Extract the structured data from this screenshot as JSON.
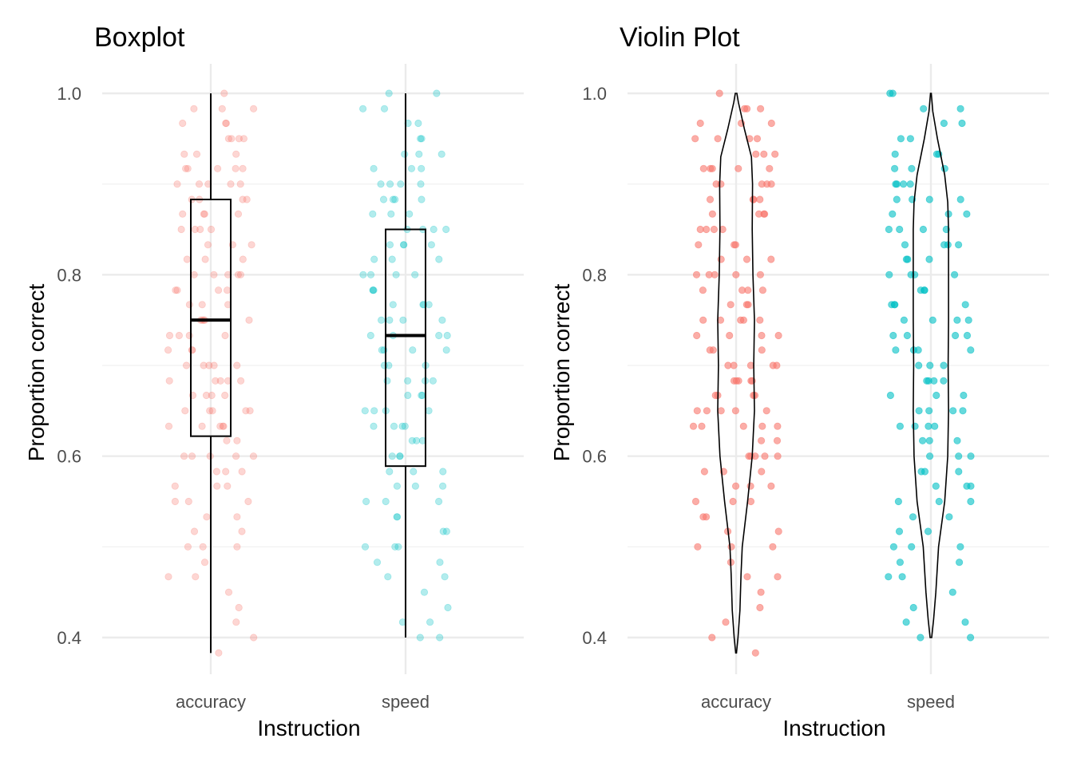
{
  "chart_data": [
    {
      "type": "box",
      "title": "Boxplot",
      "xlabel": "Instruction",
      "ylabel": "Proportion correct",
      "categories": [
        "accuracy",
        "speed"
      ],
      "yticks": [
        "0.4",
        "0.6",
        "0.8",
        "1.0"
      ],
      "ylim": [
        0.35,
        1.03
      ],
      "grid": true,
      "boxes": [
        {
          "category": "accuracy",
          "min": 0.383,
          "q1": 0.622,
          "median": 0.75,
          "q3": 0.883,
          "max": 1.0
        },
        {
          "category": "speed",
          "min": 0.4,
          "q1": 0.589,
          "median": 0.733,
          "q3": 0.85,
          "max": 1.0
        }
      ],
      "colors": {
        "accuracy": "#F8766D",
        "speed": "#00BFC4"
      },
      "point_alpha": 0.3
    },
    {
      "type": "violin",
      "title": "Violin Plot",
      "xlabel": "Instruction",
      "ylabel": "Proportion correct",
      "categories": [
        "accuracy",
        "speed"
      ],
      "yticks": [
        "0.4",
        "0.6",
        "0.8",
        "1.0"
      ],
      "ylim": [
        0.35,
        1.03
      ],
      "grid": true,
      "violins": [
        {
          "category": "accuracy",
          "min": 0.383,
          "max": 1.0,
          "density": [
            [
              0.383,
              0.01
            ],
            [
              0.4,
              0.05
            ],
            [
              0.43,
              0.1
            ],
            [
              0.47,
              0.13
            ],
            [
              0.5,
              0.16
            ],
            [
              0.55,
              0.3
            ],
            [
              0.6,
              0.42
            ],
            [
              0.65,
              0.48
            ],
            [
              0.7,
              0.46
            ],
            [
              0.75,
              0.48
            ],
            [
              0.8,
              0.44
            ],
            [
              0.85,
              0.42
            ],
            [
              0.9,
              0.43
            ],
            [
              0.93,
              0.4
            ],
            [
              0.96,
              0.22
            ],
            [
              0.99,
              0.06
            ],
            [
              1.0,
              0.02
            ]
          ]
        },
        {
          "category": "speed",
          "min": 0.4,
          "max": 1.0,
          "density": [
            [
              0.4,
              0.02
            ],
            [
              0.42,
              0.07
            ],
            [
              0.45,
              0.13
            ],
            [
              0.5,
              0.2
            ],
            [
              0.55,
              0.36
            ],
            [
              0.6,
              0.44
            ],
            [
              0.65,
              0.46
            ],
            [
              0.7,
              0.45
            ],
            [
              0.75,
              0.46
            ],
            [
              0.8,
              0.46
            ],
            [
              0.85,
              0.46
            ],
            [
              0.88,
              0.44
            ],
            [
              0.91,
              0.36
            ],
            [
              0.95,
              0.17
            ],
            [
              0.98,
              0.05
            ],
            [
              1.0,
              0.01
            ]
          ]
        }
      ],
      "colors": {
        "accuracy": "#F8766D",
        "speed": "#00BFC4"
      },
      "point_alpha": 0.6
    }
  ],
  "observations": {
    "accuracy": [
      1.0,
      0.983,
      0.983,
      0.983,
      0.967,
      0.967,
      0.967,
      0.95,
      0.95,
      0.95,
      0.95,
      0.933,
      0.933,
      0.933,
      0.917,
      0.917,
      0.917,
      0.917,
      0.917,
      0.9,
      0.9,
      0.9,
      0.9,
      0.9,
      0.883,
      0.883,
      0.883,
      0.883,
      0.867,
      0.867,
      0.867,
      0.867,
      0.85,
      0.85,
      0.85,
      0.85,
      0.833,
      0.833,
      0.833,
      0.817,
      0.817,
      0.817,
      0.8,
      0.8,
      0.8,
      0.8,
      0.8,
      0.783,
      0.783,
      0.783,
      0.783,
      0.767,
      0.767,
      0.767,
      0.75,
      0.75,
      0.75,
      0.75,
      0.75,
      0.733,
      0.733,
      0.733,
      0.733,
      0.717,
      0.717,
      0.717,
      0.7,
      0.7,
      0.7,
      0.7,
      0.7,
      0.683,
      0.683,
      0.683,
      0.683,
      0.683,
      0.667,
      0.667,
      0.667,
      0.667,
      0.65,
      0.65,
      0.65,
      0.65,
      0.65,
      0.633,
      0.633,
      0.633,
      0.633,
      0.633,
      0.617,
      0.617,
      0.6,
      0.6,
      0.6,
      0.6,
      0.6,
      0.583,
      0.583,
      0.583,
      0.567,
      0.567,
      0.567,
      0.55,
      0.55,
      0.55,
      0.533,
      0.533,
      0.517,
      0.517,
      0.5,
      0.5,
      0.5,
      0.483,
      0.467,
      0.467,
      0.45,
      0.433,
      0.417,
      0.4,
      0.383
    ],
    "speed": [
      1.0,
      1.0,
      0.983,
      0.983,
      0.967,
      0.967,
      0.95,
      0.95,
      0.933,
      0.933,
      0.933,
      0.917,
      0.917,
      0.917,
      0.9,
      0.9,
      0.9,
      0.9,
      0.883,
      0.883,
      0.883,
      0.883,
      0.867,
      0.867,
      0.867,
      0.85,
      0.85,
      0.85,
      0.85,
      0.833,
      0.833,
      0.833,
      0.833,
      0.817,
      0.817,
      0.817,
      0.8,
      0.8,
      0.8,
      0.8,
      0.783,
      0.783,
      0.783,
      0.767,
      0.767,
      0.767,
      0.767,
      0.75,
      0.75,
      0.75,
      0.75,
      0.733,
      0.733,
      0.733,
      0.733,
      0.717,
      0.717,
      0.717,
      0.717,
      0.7,
      0.7,
      0.7,
      0.683,
      0.683,
      0.683,
      0.683,
      0.667,
      0.667,
      0.667,
      0.65,
      0.65,
      0.65,
      0.65,
      0.633,
      0.633,
      0.633,
      0.633,
      0.617,
      0.617,
      0.617,
      0.6,
      0.6,
      0.6,
      0.583,
      0.583,
      0.583,
      0.567,
      0.567,
      0.567,
      0.55,
      0.55,
      0.55,
      0.533,
      0.533,
      0.517,
      0.517,
      0.5,
      0.5,
      0.5,
      0.483,
      0.483,
      0.467,
      0.467,
      0.45,
      0.433,
      0.417,
      0.417,
      0.4,
      0.4
    ]
  }
}
